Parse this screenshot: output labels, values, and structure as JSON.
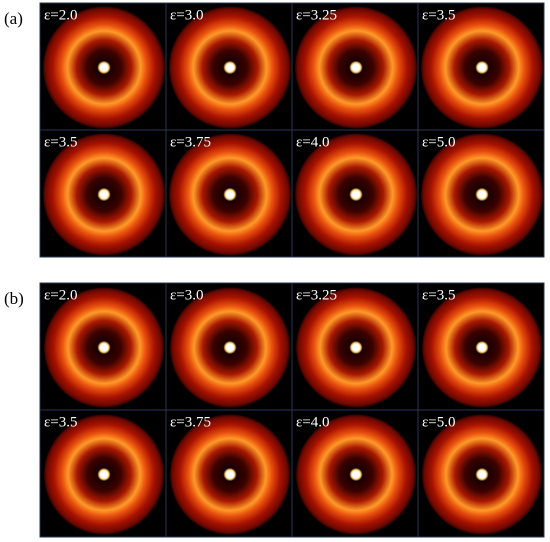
{
  "panels": [
    {
      "label": "(a)",
      "tiles": [
        "ε=2.0",
        "ε=3.0",
        "ε=3.25",
        "ε=3.5",
        "ε=3.5",
        "ε=3.75",
        "ε=4.0",
        "ε=5.0"
      ]
    },
    {
      "label": "(b)",
      "tiles": [
        "ε=2.0",
        "ε=3.0",
        "ε=3.25",
        "ε=3.5",
        "ε=3.5",
        "ε=3.75",
        "ε=4.0",
        "ε=5.0"
      ]
    }
  ]
}
